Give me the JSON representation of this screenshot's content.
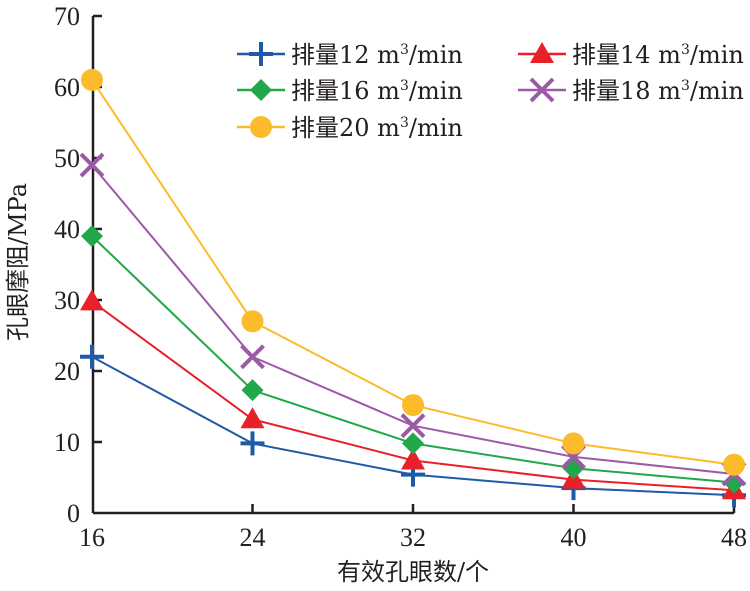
{
  "chart_data": {
    "type": "line",
    "title": "",
    "xlabel": "有效孔眼数/个",
    "ylabel": "孔眼摩阻/MPa",
    "x": [
      16,
      24,
      32,
      40,
      48
    ],
    "x_tick_labels": [
      "16",
      "24",
      "32",
      "40",
      "48"
    ],
    "y_ticks": [
      0,
      10,
      20,
      30,
      40,
      50,
      60,
      70
    ],
    "y_tick_labels": [
      "0",
      "10",
      "20",
      "30",
      "40",
      "50",
      "60",
      "70"
    ],
    "xlim": [
      16,
      48
    ],
    "ylim": [
      0,
      70
    ],
    "grid": false,
    "legend_position": "top-right",
    "series": [
      {
        "name": "排量12 m³/min",
        "label_prefix": "排量12 m",
        "label_sup": "3",
        "label_suffix": "/min",
        "color": "#1f5aa6",
        "marker": "plus",
        "values": [
          22,
          9.8,
          5.4,
          3.5,
          2.5
        ]
      },
      {
        "name": "排量14 m³/min",
        "label_prefix": "排量14 m",
        "label_sup": "3",
        "label_suffix": "/min",
        "color": "#e8202a",
        "marker": "triangle",
        "values": [
          29.8,
          13.2,
          7.4,
          4.7,
          3.2
        ]
      },
      {
        "name": "排量16 m³/min",
        "label_prefix": "排量16 m",
        "label_sup": "3",
        "label_suffix": "/min",
        "color": "#22a84a",
        "marker": "diamond",
        "values": [
          39,
          17.3,
          9.8,
          6.3,
          4.3
        ]
      },
      {
        "name": "排量18 m³/min",
        "label_prefix": "排量18 m",
        "label_sup": "3",
        "label_suffix": "/min",
        "color": "#9b5aa6",
        "marker": "cross",
        "values": [
          49,
          22,
          12.3,
          7.9,
          5.5
        ]
      },
      {
        "name": "排量20 m³/min",
        "label_prefix": "排量20 m",
        "label_sup": "3",
        "label_suffix": "/min",
        "color": "#fbbb2a",
        "marker": "circle",
        "values": [
          61,
          27,
          15.2,
          9.8,
          6.8
        ]
      }
    ]
  }
}
